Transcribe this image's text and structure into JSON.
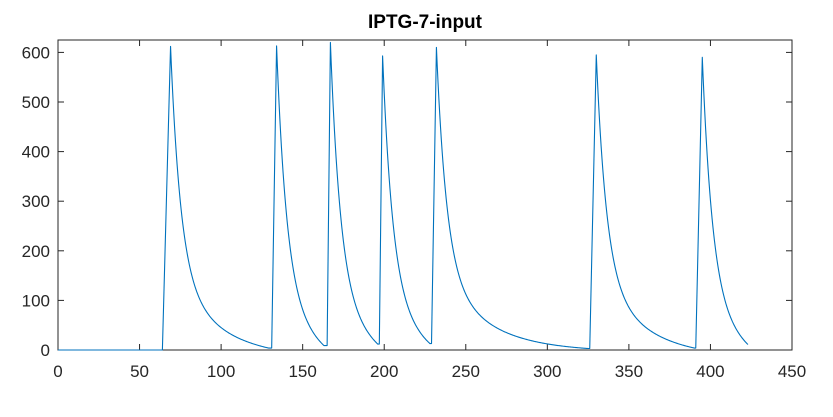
{
  "chart_data": {
    "type": "line",
    "title": "IPTG-7-input",
    "xlabel": "",
    "ylabel": "",
    "xlim": [
      0,
      450
    ],
    "ylim": [
      0,
      625
    ],
    "xticks": [
      0,
      50,
      100,
      150,
      200,
      250,
      300,
      350,
      400,
      450
    ],
    "yticks": [
      0,
      100,
      200,
      300,
      400,
      500,
      600
    ],
    "grid": false,
    "legend": "none",
    "colors": {
      "series": "#0072BD",
      "axes": "#262626",
      "background": "#ffffff"
    },
    "series": [
      {
        "peaks": [
          {
            "start": 64,
            "peak_x": 69,
            "peak_y": 612,
            "pre_level": 0,
            "end_x": 129,
            "end_y": 4
          },
          {
            "start": 131,
            "peak_x": 134,
            "peak_y": 613,
            "pre_level": 4,
            "end_x": 163,
            "end_y": 9
          },
          {
            "start": 165,
            "peak_x": 167,
            "peak_y": 620,
            "pre_level": 9,
            "end_x": 196,
            "end_y": 12
          },
          {
            "start": 197,
            "peak_x": 199,
            "peak_y": 593,
            "pre_level": 12,
            "end_x": 228,
            "end_y": 13
          },
          {
            "start": 229,
            "peak_x": 232,
            "peak_y": 610,
            "pre_level": 13,
            "end_x": 325,
            "end_y": 3
          },
          {
            "start": 326,
            "peak_x": 330,
            "peak_y": 595,
            "pre_level": 3,
            "end_x": 390,
            "end_y": 4
          },
          {
            "start": 391,
            "peak_x": 395,
            "peak_y": 590,
            "pre_level": 4,
            "end_x": 423,
            "end_y": 11
          }
        ],
        "x_min": 0,
        "x_max": 423
      }
    ]
  }
}
